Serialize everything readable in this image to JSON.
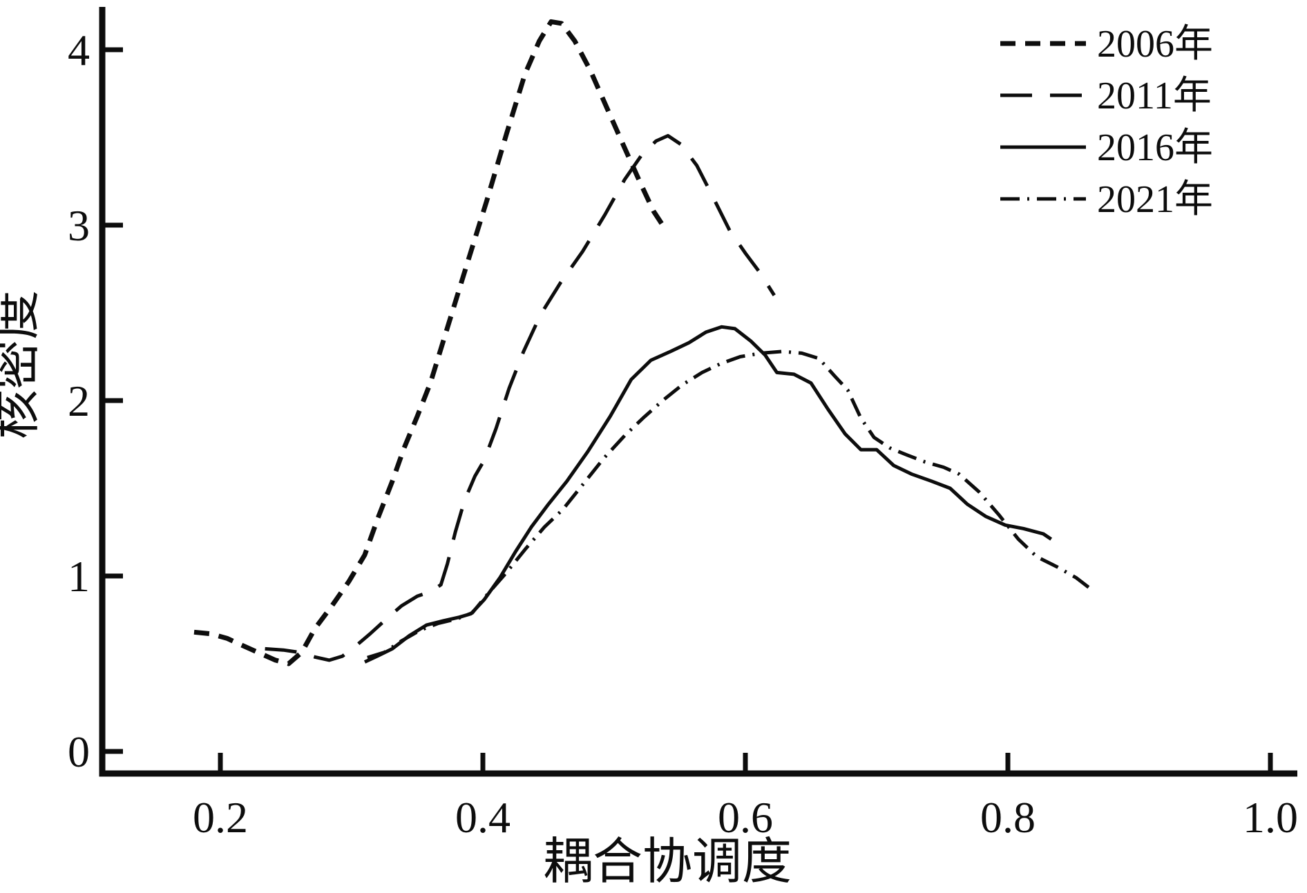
{
  "colors": {
    "line": "#0d0d0d",
    "background": "#ffffff"
  },
  "chart_data": {
    "type": "line",
    "title": "",
    "xlabel": "耦合协调度",
    "ylabel": "核密度",
    "xlim": [
      0.11,
      1.02
    ],
    "ylim": [
      0,
      4.25
    ],
    "grid": false,
    "legend_position": "top-right",
    "x_ticks": [
      0.2,
      0.4,
      0.6,
      0.8,
      1.0
    ],
    "x_tick_labels": [
      "0.2",
      "0.4",
      "0.6",
      "0.8",
      "1.0"
    ],
    "y_ticks": [
      0,
      1,
      2,
      3,
      4
    ],
    "y_tick_labels": [
      "0",
      "1",
      "2",
      "3",
      "4"
    ],
    "series": [
      {
        "name": "2006年",
        "style": "dashed",
        "points": [
          [
            0.18,
            0.68
          ],
          [
            0.193,
            0.67
          ],
          [
            0.205,
            0.645
          ],
          [
            0.218,
            0.6
          ],
          [
            0.23,
            0.56
          ],
          [
            0.242,
            0.52
          ],
          [
            0.252,
            0.5
          ],
          [
            0.262,
            0.565
          ],
          [
            0.272,
            0.7
          ],
          [
            0.285,
            0.83
          ],
          [
            0.298,
            0.97
          ],
          [
            0.31,
            1.12
          ],
          [
            0.32,
            1.33
          ],
          [
            0.331,
            1.54
          ],
          [
            0.34,
            1.73
          ],
          [
            0.35,
            1.91
          ],
          [
            0.36,
            2.1
          ],
          [
            0.374,
            2.44
          ],
          [
            0.388,
            2.78
          ],
          [
            0.403,
            3.14
          ],
          [
            0.418,
            3.52
          ],
          [
            0.432,
            3.86
          ],
          [
            0.443,
            4.05
          ],
          [
            0.452,
            4.16
          ],
          [
            0.46,
            4.15
          ],
          [
            0.47,
            4.05
          ],
          [
            0.482,
            3.88
          ],
          [
            0.495,
            3.66
          ],
          [
            0.508,
            3.44
          ],
          [
            0.52,
            3.24
          ],
          [
            0.53,
            3.08
          ],
          [
            0.537,
            3.0
          ]
        ]
      },
      {
        "name": "2011年",
        "style": "longdash",
        "points": [
          [
            0.234,
            0.585
          ],
          [
            0.248,
            0.578
          ],
          [
            0.26,
            0.565
          ],
          [
            0.272,
            0.538
          ],
          [
            0.283,
            0.52
          ],
          [
            0.293,
            0.543
          ],
          [
            0.303,
            0.6
          ],
          [
            0.314,
            0.67
          ],
          [
            0.325,
            0.745
          ],
          [
            0.338,
            0.83
          ],
          [
            0.35,
            0.885
          ],
          [
            0.36,
            0.91
          ],
          [
            0.368,
            0.95
          ],
          [
            0.373,
            1.07
          ],
          [
            0.379,
            1.25
          ],
          [
            0.386,
            1.43
          ],
          [
            0.394,
            1.57
          ],
          [
            0.401,
            1.66
          ],
          [
            0.41,
            1.84
          ],
          [
            0.42,
            2.07
          ],
          [
            0.431,
            2.28
          ],
          [
            0.444,
            2.49
          ],
          [
            0.459,
            2.67
          ],
          [
            0.476,
            2.85
          ],
          [
            0.493,
            3.06
          ],
          [
            0.508,
            3.26
          ],
          [
            0.521,
            3.4
          ],
          [
            0.532,
            3.48
          ],
          [
            0.541,
            3.51
          ],
          [
            0.551,
            3.46
          ],
          [
            0.563,
            3.34
          ],
          [
            0.576,
            3.15
          ],
          [
            0.588,
            2.97
          ],
          [
            0.6,
            2.84
          ],
          [
            0.611,
            2.73
          ],
          [
            0.622,
            2.6
          ]
        ]
      },
      {
        "name": "2016年",
        "style": "solid",
        "points": [
          [
            0.31,
            0.51
          ],
          [
            0.32,
            0.545
          ],
          [
            0.331,
            0.585
          ],
          [
            0.344,
            0.66
          ],
          [
            0.357,
            0.72
          ],
          [
            0.37,
            0.745
          ],
          [
            0.382,
            0.765
          ],
          [
            0.391,
            0.785
          ],
          [
            0.401,
            0.865
          ],
          [
            0.413,
            0.99
          ],
          [
            0.425,
            1.14
          ],
          [
            0.437,
            1.28
          ],
          [
            0.45,
            1.41
          ],
          [
            0.464,
            1.54
          ],
          [
            0.48,
            1.71
          ],
          [
            0.497,
            1.91
          ],
          [
            0.513,
            2.12
          ],
          [
            0.528,
            2.23
          ],
          [
            0.543,
            2.28
          ],
          [
            0.557,
            2.33
          ],
          [
            0.57,
            2.39
          ],
          [
            0.582,
            2.42
          ],
          [
            0.592,
            2.41
          ],
          [
            0.604,
            2.34
          ],
          [
            0.615,
            2.26
          ],
          [
            0.624,
            2.16
          ],
          [
            0.637,
            2.15
          ],
          [
            0.65,
            2.1
          ],
          [
            0.663,
            1.95
          ],
          [
            0.676,
            1.81
          ],
          [
            0.688,
            1.72
          ],
          [
            0.7,
            1.72
          ],
          [
            0.713,
            1.63
          ],
          [
            0.727,
            1.58
          ],
          [
            0.742,
            1.54
          ],
          [
            0.756,
            1.5
          ],
          [
            0.769,
            1.41
          ],
          [
            0.783,
            1.34
          ],
          [
            0.798,
            1.29
          ],
          [
            0.812,
            1.27
          ],
          [
            0.827,
            1.24
          ],
          [
            0.833,
            1.21
          ]
        ]
      },
      {
        "name": "2021年",
        "style": "dashdot",
        "points": [
          [
            0.312,
            0.535
          ],
          [
            0.325,
            0.565
          ],
          [
            0.338,
            0.63
          ],
          [
            0.352,
            0.69
          ],
          [
            0.366,
            0.73
          ],
          [
            0.38,
            0.755
          ],
          [
            0.392,
            0.79
          ],
          [
            0.404,
            0.9
          ],
          [
            0.418,
            1.02
          ],
          [
            0.432,
            1.15
          ],
          [
            0.447,
            1.28
          ],
          [
            0.461,
            1.38
          ],
          [
            0.476,
            1.52
          ],
          [
            0.492,
            1.67
          ],
          [
            0.508,
            1.8
          ],
          [
            0.522,
            1.9
          ],
          [
            0.537,
            2.0
          ],
          [
            0.552,
            2.09
          ],
          [
            0.567,
            2.16
          ],
          [
            0.581,
            2.21
          ],
          [
            0.596,
            2.25
          ],
          [
            0.612,
            2.27
          ],
          [
            0.628,
            2.28
          ],
          [
            0.643,
            2.27
          ],
          [
            0.656,
            2.24
          ],
          [
            0.668,
            2.14
          ],
          [
            0.678,
            2.06
          ],
          [
            0.688,
            1.9
          ],
          [
            0.698,
            1.79
          ],
          [
            0.71,
            1.73
          ],
          [
            0.723,
            1.69
          ],
          [
            0.737,
            1.65
          ],
          [
            0.751,
            1.62
          ],
          [
            0.763,
            1.58
          ],
          [
            0.778,
            1.48
          ],
          [
            0.793,
            1.35
          ],
          [
            0.808,
            1.21
          ],
          [
            0.822,
            1.11
          ],
          [
            0.838,
            1.05
          ],
          [
            0.852,
            0.99
          ],
          [
            0.866,
            0.91
          ]
        ]
      }
    ]
  }
}
